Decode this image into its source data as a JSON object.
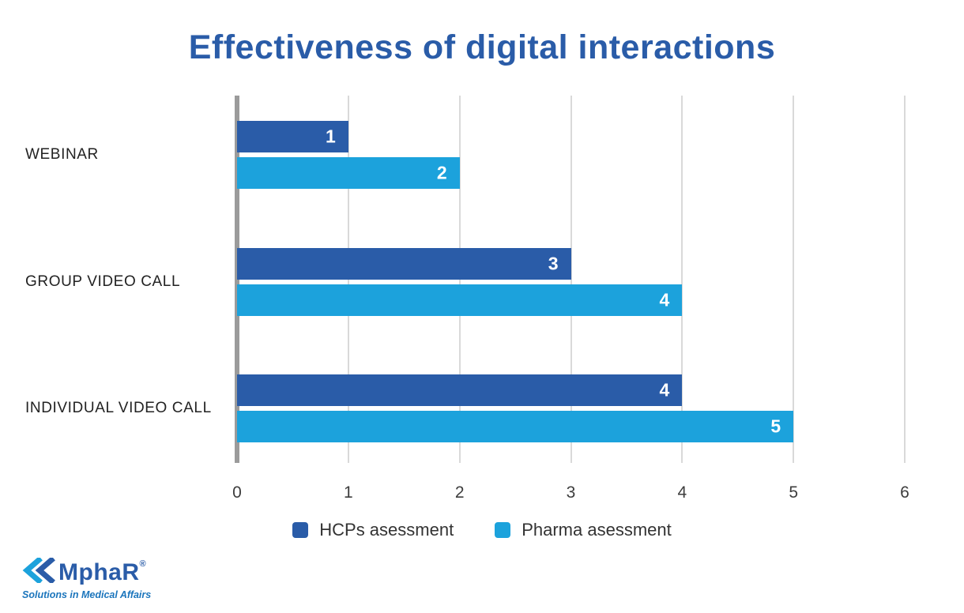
{
  "title": "Effectiveness of digital interactions",
  "chart_data": {
    "type": "bar",
    "orientation": "horizontal",
    "title": "Effectiveness of digital interactions",
    "categories": [
      "WEBINAR",
      "GROUP VIDEO CALL",
      "INDIVIDUAL VIDEO CALL"
    ],
    "series": [
      {
        "name": "HCPs asessment",
        "color": "#2a5ca8",
        "values": [
          1,
          3,
          4
        ]
      },
      {
        "name": "Pharma asessment",
        "color": "#1fa2dc0",
        "values": [
          2,
          4,
          5
        ]
      }
    ],
    "series_colors": {
      "HCPs asessment": "#2a5ca8",
      "Pharma asessment": "#1ca2dc"
    },
    "xlim": [
      0,
      6
    ],
    "xticks": [
      0,
      1,
      2,
      3,
      4,
      5,
      6
    ],
    "grid": "vertical",
    "legend_position": "bottom",
    "value_labels": "inside-end",
    "value_label_color": "#ffffff"
  },
  "legend": {
    "items": [
      {
        "label": "HCPs asessment",
        "color": "#2a5ca8"
      },
      {
        "label": "Pharma asessment",
        "color": "#1ca2dc"
      }
    ]
  },
  "logo": {
    "name": "MphaR",
    "registered": "®",
    "tagline": "Solutions in Medical Affairs"
  },
  "colors": {
    "title": "#2a5ca8",
    "dark_blue_bar": "#2a5ca8",
    "light_blue_bar": "#1ca2dc",
    "gridline": "#d9d9d9",
    "axis_line": "#9b9b9b",
    "background": "#ffffff"
  }
}
